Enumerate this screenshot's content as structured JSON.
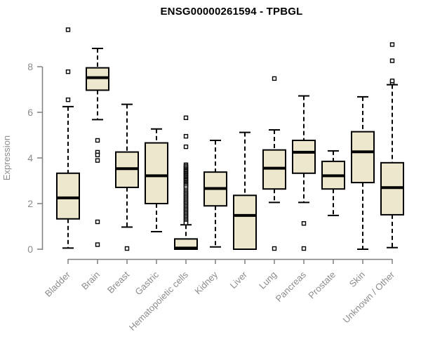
{
  "chart_data": {
    "type": "boxplot",
    "title": "ENSG00000261594 - TPBGL",
    "ylabel": "Expression",
    "yticks": [
      0,
      2,
      4,
      6,
      8
    ],
    "ylim": [
      0,
      9.8
    ],
    "grid": false,
    "legend": "none",
    "colors": {
      "box_fill": "#EDE8CD",
      "box_stroke": "#000000",
      "median": "#000000",
      "whisker": "#000000",
      "outlier_stroke": "#000000",
      "axis": "#7F7F7F",
      "labels": "#8C8C8C",
      "title": "#000000"
    },
    "categories": [
      "Bladder",
      "Brain",
      "Breast",
      "Gastric",
      "Hematopoietic cells",
      "Kidney",
      "Liver",
      "Lung",
      "Pancreas",
      "Prostate",
      "Skin",
      "Unknown / Other"
    ],
    "series": [
      {
        "label": "Bladder",
        "whisker_low": 0.05,
        "q1": 1.33,
        "median": 2.25,
        "q3": 3.33,
        "whisker_high": 6.25,
        "outliers": [
          6.55,
          7.78,
          9.62
        ]
      },
      {
        "label": "Brain",
        "whisker_low": 5.68,
        "q1": 6.97,
        "median": 7.52,
        "q3": 7.95,
        "whisker_high": 8.8,
        "outliers": [
          4.77,
          4.25,
          4.13,
          3.89,
          1.2,
          0.2
        ]
      },
      {
        "label": "Breast",
        "whisker_low": 0.97,
        "q1": 2.71,
        "median": 3.53,
        "q3": 4.26,
        "whisker_high": 6.35,
        "outliers": [
          0.03
        ]
      },
      {
        "label": "Gastric",
        "whisker_low": 0.77,
        "q1": 2.0,
        "median": 3.22,
        "q3": 4.66,
        "whisker_high": 5.27,
        "outliers": []
      },
      {
        "label": "Hematopoietic cells",
        "whisker_low": 0.0,
        "q1": 0.0,
        "median": 0.05,
        "q3": 0.45,
        "whisker_high": 1.07,
        "outliers": [
          5.76,
          4.95,
          4.49,
          3.7,
          3.64,
          3.58,
          3.52,
          3.47,
          3.42,
          3.37,
          3.32,
          3.27,
          3.22,
          3.17,
          3.12,
          3.07,
          3.02,
          2.97,
          2.92,
          2.87,
          2.82,
          2.77,
          2.7,
          2.6,
          2.53,
          2.47,
          2.41,
          2.35,
          2.29,
          2.23,
          2.17,
          2.11,
          2.05,
          1.99,
          1.93,
          1.87,
          1.81,
          1.75,
          1.69,
          1.63,
          1.57,
          1.51,
          1.45,
          1.39,
          1.33,
          1.27,
          1.21,
          1.15
        ]
      },
      {
        "label": "Kidney",
        "whisker_low": 0.1,
        "q1": 1.9,
        "median": 2.66,
        "q3": 3.38,
        "whisker_high": 4.77,
        "outliers": []
      },
      {
        "label": "Liver",
        "whisker_low": 0.0,
        "q1": 0.0,
        "median": 1.48,
        "q3": 2.36,
        "whisker_high": 5.12,
        "outliers": []
      },
      {
        "label": "Lung",
        "whisker_low": 2.05,
        "q1": 2.64,
        "median": 3.55,
        "q3": 4.35,
        "whisker_high": 5.23,
        "outliers": [
          7.48,
          0.03
        ]
      },
      {
        "label": "Pancreas",
        "whisker_low": 2.05,
        "q1": 3.33,
        "median": 4.25,
        "q3": 4.77,
        "whisker_high": 6.72,
        "outliers": [
          1.13,
          0.03
        ]
      },
      {
        "label": "Prostate",
        "whisker_low": 1.48,
        "q1": 2.64,
        "median": 3.22,
        "q3": 3.85,
        "whisker_high": 4.31,
        "outliers": []
      },
      {
        "label": "Skin",
        "whisker_low": 0.0,
        "q1": 2.92,
        "median": 4.27,
        "q3": 5.15,
        "whisker_high": 6.68,
        "outliers": []
      },
      {
        "label": "Unknown / Other",
        "whisker_low": 0.07,
        "q1": 1.51,
        "median": 2.7,
        "q3": 3.79,
        "whisker_high": 7.21,
        "outliers": [
          7.3,
          7.38,
          8.26,
          8.97
        ]
      }
    ]
  }
}
